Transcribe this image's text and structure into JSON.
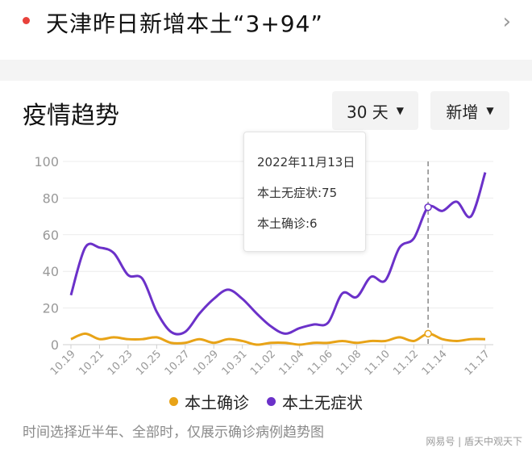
{
  "headline": {
    "title": "天津昨日新增本土“3+94”",
    "chevron_icon": "chevron-right-icon",
    "dot_color": "#e8413b"
  },
  "section": {
    "title": "疫情趋势",
    "range_dropdown": "30 天",
    "mode_dropdown": "新增"
  },
  "tooltip": {
    "date": "2022年11月13日",
    "line1": "本土无症状:75",
    "line2": "本土确诊:6"
  },
  "legend": [
    {
      "name": "本土确诊",
      "color": "#e8a317"
    },
    {
      "name": "本土无症状",
      "color": "#6b31c9"
    }
  ],
  "note": "时间选择近半年、全部时，仅展示确诊病例趋势图",
  "watermark": "网易号 | 盾天中观天下",
  "chart_data": {
    "type": "line",
    "x": [
      "10.19",
      "10.20",
      "10.21",
      "10.22",
      "10.23",
      "10.24",
      "10.25",
      "10.26",
      "10.27",
      "10.28",
      "10.29",
      "10.30",
      "10.31",
      "11.01",
      "11.02",
      "11.03",
      "11.04",
      "11.05",
      "11.06",
      "11.07",
      "11.08",
      "11.09",
      "11.10",
      "11.11",
      "11.12",
      "11.13",
      "11.14",
      "11.15",
      "11.16",
      "11.17"
    ],
    "tick_labels": [
      "10.19",
      "10.21",
      "10.23",
      "10.25",
      "10.27",
      "10.29",
      "10.31",
      "11.02",
      "11.04",
      "11.06",
      "11.08",
      "11.10",
      "11.12",
      "11.14",
      "11.17"
    ],
    "yticks": [
      "0",
      "20",
      "40",
      "60",
      "80",
      "100"
    ],
    "ylim": [
      0,
      100
    ],
    "grid": true,
    "legend_position": "bottom",
    "highlight_index": 25,
    "series": [
      {
        "name": "本土确诊",
        "color": "#e8a317",
        "values": [
          3,
          6,
          3,
          4,
          3,
          3,
          4,
          1,
          1,
          3,
          1,
          3,
          2,
          0,
          1,
          1,
          0,
          1,
          1,
          2,
          1,
          2,
          2,
          4,
          2,
          6,
          3,
          2,
          3,
          3
        ]
      },
      {
        "name": "本土无症状",
        "color": "#6b31c9",
        "values": [
          27,
          53,
          53,
          50,
          38,
          36,
          18,
          7,
          7,
          17,
          25,
          30,
          25,
          17,
          10,
          6,
          9,
          11,
          12,
          28,
          26,
          37,
          35,
          53,
          58,
          75,
          73,
          78,
          70,
          94
        ]
      }
    ]
  }
}
